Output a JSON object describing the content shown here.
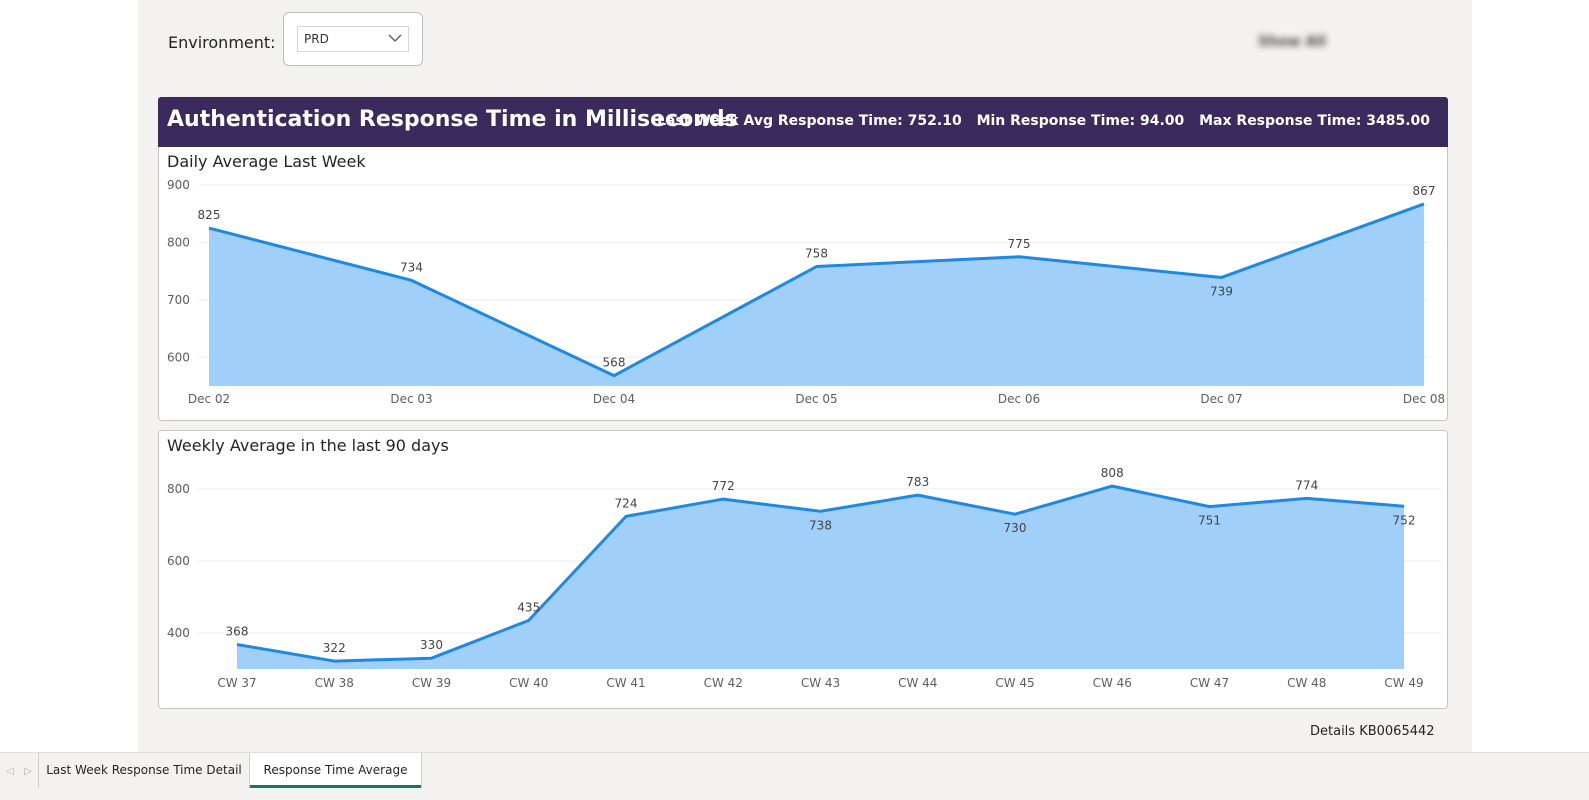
{
  "filter": {
    "label": "Environment:",
    "selected": "PRD",
    "blurred_text": "Show All"
  },
  "banner": {
    "title": "Authentication Response Time in Milliseconds",
    "avg": "Last Week Avg Response Time: 752.10",
    "min": "Min Response Time: 94.00",
    "max": "Max Response Time: 3485.00",
    "background": "#3b2a5c"
  },
  "footer": {
    "details": "Details KB0065442"
  },
  "tabs": {
    "items": [
      "Last Week Response Time Detail",
      "Response Time Average"
    ],
    "active_index": 1,
    "accent": "#117865"
  },
  "colors": {
    "line": "#1e88e5",
    "area": "#a0cff9",
    "gridline": "#eeeeee"
  },
  "chart_data": [
    {
      "type": "area",
      "title": "Daily Average Last Week",
      "categories": [
        "Dec 02",
        "Dec 03",
        "Dec 04",
        "Dec 05",
        "Dec 06",
        "Dec 07",
        "Dec 08"
      ],
      "values": [
        825,
        734,
        568,
        758,
        775,
        739,
        867
      ],
      "data_labels": [
        "825",
        "734",
        "568",
        "758",
        "775",
        "739",
        "867"
      ],
      "yticks": [
        900,
        800,
        700,
        600
      ],
      "ylim": [
        550,
        900
      ],
      "grid": true
    },
    {
      "type": "area",
      "title": "Weekly Average in the last 90 days",
      "categories": [
        "CW 37",
        "CW 38",
        "CW 39",
        "CW 40",
        "CW 41",
        "CW 42",
        "CW 43",
        "CW 44",
        "CW 45",
        "CW 46",
        "CW 47",
        "CW 48",
        "CW 49"
      ],
      "values": [
        368,
        322,
        330,
        435,
        724,
        772,
        738,
        783,
        730,
        808,
        751,
        774,
        752
      ],
      "data_labels": [
        "368",
        "322",
        "330",
        "435",
        "724",
        "772",
        "738",
        "783",
        "730",
        "808",
        "751",
        "774",
        "752"
      ],
      "yticks": [
        800,
        600,
        400
      ],
      "ylim": [
        300,
        900
      ],
      "grid": true
    }
  ]
}
